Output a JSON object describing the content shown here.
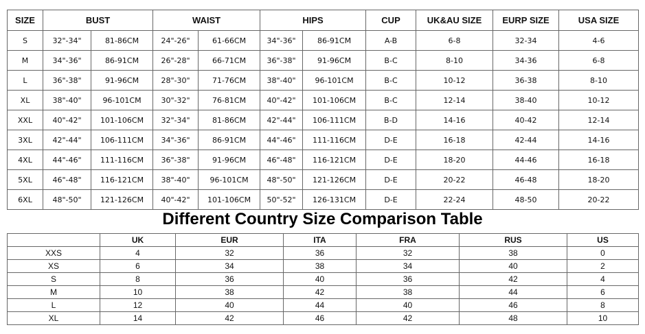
{
  "size_table": {
    "header": [
      "SIZE",
      "BUST",
      "WAIST",
      "HIPS",
      "CUP",
      "UK&AU SIZE",
      "EURP SIZE",
      "USA SIZE"
    ],
    "rows": [
      [
        "S",
        "32\"-34\"",
        "81-86CM",
        "24\"-26\"",
        "61-66CM",
        "34\"-36\"",
        "86-91CM",
        "A-B",
        "6-8",
        "32-34",
        "4-6"
      ],
      [
        "M",
        "34\"-36\"",
        "86-91CM",
        "26\"-28\"",
        "66-71CM",
        "36\"-38\"",
        "91-96CM",
        "B-C",
        "8-10",
        "34-36",
        "6-8"
      ],
      [
        "L",
        "36\"-38\"",
        "91-96CM",
        "28\"-30\"",
        "71-76CM",
        "38\"-40\"",
        "96-101CM",
        "B-C",
        "10-12",
        "36-38",
        "8-10"
      ],
      [
        "XL",
        "38\"-40\"",
        "96-101CM",
        "30\"-32\"",
        "76-81CM",
        "40\"-42\"",
        "101-106CM",
        "B-C",
        "12-14",
        "38-40",
        "10-12"
      ],
      [
        "XXL",
        "40\"-42\"",
        "101-106CM",
        "32\"-34\"",
        "81-86CM",
        "42\"-44\"",
        "106-111CM",
        "B-D",
        "14-16",
        "40-42",
        "12-14"
      ],
      [
        "3XL",
        "42\"-44\"",
        "106-111CM",
        "34\"-36\"",
        "86-91CM",
        "44\"-46\"",
        "111-116CM",
        "D-E",
        "16-18",
        "42-44",
        "14-16"
      ],
      [
        "4XL",
        "44\"-46\"",
        "111-116CM",
        "36\"-38\"",
        "91-96CM",
        "46\"-48\"",
        "116-121CM",
        "D-E",
        "18-20",
        "44-46",
        "16-18"
      ],
      [
        "5XL",
        "46\"-48\"",
        "116-121CM",
        "38\"-40\"",
        "96-101CM",
        "48\"-50\"",
        "121-126CM",
        "D-E",
        "20-22",
        "46-48",
        "18-20"
      ],
      [
        "6XL",
        "48\"-50\"",
        "121-126CM",
        "40\"-42\"",
        "101-106CM",
        "50\"-52\"",
        "126-131CM",
        "D-E",
        "22-24",
        "48-50",
        "20-22"
      ]
    ]
  },
  "comparison": {
    "title": "Different Country Size Comparison Table",
    "header": [
      "UK",
      "EUR",
      "ITA",
      "FRA",
      "RUS",
      "US"
    ],
    "rows": [
      [
        "XXS",
        4,
        32,
        36,
        32,
        38,
        0
      ],
      [
        "XS",
        6,
        34,
        38,
        34,
        40,
        2
      ],
      [
        "S",
        8,
        36,
        40,
        36,
        42,
        4
      ],
      [
        "M",
        10,
        38,
        42,
        38,
        44,
        6
      ],
      [
        "L",
        12,
        40,
        44,
        40,
        46,
        8
      ],
      [
        "XL",
        14,
        42,
        46,
        42,
        48,
        10
      ]
    ]
  }
}
